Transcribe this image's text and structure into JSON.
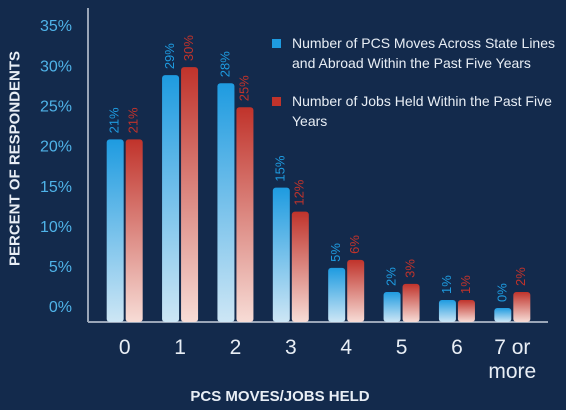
{
  "chart_data": {
    "type": "bar",
    "categories": [
      "0",
      "1",
      "2",
      "3",
      "4",
      "5",
      "6",
      "7 or more"
    ],
    "series": [
      {
        "name": "Number of PCS Moves Across State Lines and Abroad Within the Past Five Years",
        "color": "#1e9be0",
        "values": [
          21,
          29,
          28,
          15,
          5,
          2,
          1,
          0
        ],
        "value_labels": [
          "21%",
          "29%",
          "28%",
          "15%",
          "5%",
          "2%",
          "1%",
          "0%"
        ]
      },
      {
        "name": "Number of Jobs Held Within the Past Five Years",
        "color": "#c0332b",
        "values": [
          21,
          30,
          25,
          12,
          6,
          3,
          1,
          2
        ],
        "value_labels": [
          "21%",
          "30%",
          "25%",
          "12%",
          "6%",
          "3%",
          "1%",
          "2%"
        ]
      }
    ],
    "xlabel": "PCS MOVES/JOBS HELD",
    "ylabel": "PERCENT OF RESPONDENTS",
    "ylim": [
      0,
      35
    ],
    "yticks": [
      {
        "value": 0,
        "label": "0%"
      },
      {
        "value": 5,
        "label": "5%"
      },
      {
        "value": 10,
        "label": "10%"
      },
      {
        "value": 15,
        "label": "15%"
      },
      {
        "value": 20,
        "label": "20%"
      },
      {
        "value": 25,
        "label": "25%"
      },
      {
        "value": 30,
        "label": "30%"
      },
      {
        "value": 35,
        "label": "35%"
      }
    ],
    "legend": "upper right"
  }
}
